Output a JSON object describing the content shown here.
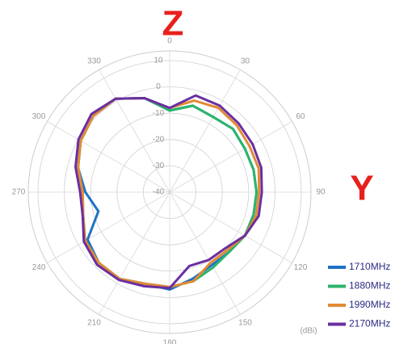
{
  "chart_data": {
    "type": "polar",
    "z_label": "Z",
    "y_label": "Y",
    "unit_label": "(dBi)",
    "theta": [
      0,
      15,
      30,
      45,
      60,
      75,
      90,
      105,
      120,
      135,
      150,
      165,
      180,
      195,
      210,
      225,
      240,
      255,
      270,
      285,
      300,
      315,
      330,
      345
    ],
    "thetaticks": [
      0,
      30,
      60,
      90,
      120,
      150,
      180,
      210,
      240,
      270,
      300,
      330
    ],
    "rlim": [
      -40,
      10
    ],
    "rticks": [
      -40,
      -30,
      -20,
      -10,
      0,
      10
    ],
    "grid": true,
    "legend": "lower right",
    "series": [
      {
        "name": "1710MHz",
        "color": "#1f72c4",
        "values": [
          -9,
          -6,
          -7,
          -6,
          -7,
          -7,
          -7,
          -7,
          -7,
          -8,
          -8,
          -6,
          -3,
          -4,
          -2,
          -2,
          -4,
          -12,
          -8,
          -4,
          -1,
          1,
          1,
          -3
        ]
      },
      {
        "name": "1880MHz",
        "color": "#2bb56a",
        "values": [
          -9,
          -6,
          -7,
          -6,
          -7,
          -7,
          -7,
          -7,
          -7,
          -8,
          -7,
          -5,
          -4,
          -4,
          -2,
          -2,
          -3,
          -6,
          -7,
          -4,
          -1,
          1,
          1,
          -3
        ]
      },
      {
        "name": "1990MHz",
        "color": "#e28a34",
        "values": [
          -8,
          -4,
          -3,
          -4,
          -5,
          -5,
          -6,
          -6,
          -7,
          -9,
          -9,
          -5,
          -4,
          -4,
          -2,
          -2,
          -3,
          -6,
          -7,
          -4,
          -1,
          1,
          1,
          -3
        ]
      },
      {
        "name": "2170MHz",
        "color": "#6a2fa2",
        "values": [
          -8,
          -2,
          -2,
          -3,
          -3.6,
          -4,
          -5,
          -5,
          -7,
          -10,
          -10.3,
          -11,
          -3.6,
          -3,
          -1.5,
          -1,
          -2.4,
          -5.8,
          -6,
          -3,
          0,
          2,
          1,
          -3
        ]
      }
    ]
  }
}
